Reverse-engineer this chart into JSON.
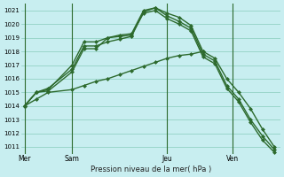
{
  "bg_color": "#c8eef0",
  "grid_color": "#88ccbb",
  "line_color": "#2d6a2d",
  "marker": "D",
  "markersize": 2.0,
  "linewidth": 1.0,
  "xlabel": "Pression niveau de la mer( hPa )",
  "ylim": [
    1010.5,
    1021.5
  ],
  "yticks": [
    1011,
    1012,
    1013,
    1014,
    1015,
    1016,
    1017,
    1018,
    1019,
    1020,
    1021
  ],
  "day_labels": [
    "Mer",
    "Sam",
    "Jeu",
    "Ven"
  ],
  "day_positions": [
    0.0,
    4.0,
    12.0,
    17.5
  ],
  "xlim": [
    -0.3,
    21.5
  ],
  "series": [
    {
      "x": [
        0,
        1,
        2,
        4,
        5,
        6,
        7,
        8,
        9,
        10,
        11,
        12,
        13,
        14,
        15
      ],
      "y": [
        1014.0,
        1014.5,
        1015.0,
        1015.2,
        1015.5,
        1015.8,
        1016.0,
        1016.3,
        1016.6,
        1016.9,
        1017.2,
        1017.5,
        1017.7,
        1017.8,
        1018.0
      ]
    },
    {
      "x": [
        0,
        1,
        2,
        4,
        5,
        6,
        7,
        8,
        9,
        10,
        11,
        12,
        13,
        14,
        15,
        16,
        17,
        18,
        19,
        20,
        21
      ],
      "y": [
        1014.0,
        1015.0,
        1015.2,
        1017.0,
        1018.7,
        1018.7,
        1019.0,
        1019.2,
        1019.3,
        1021.0,
        1021.2,
        1020.8,
        1020.5,
        1019.9,
        1018.0,
        1017.5,
        1016.0,
        1015.0,
        1013.8,
        1012.3,
        1011.0
      ]
    },
    {
      "x": [
        0,
        1,
        2,
        4,
        5,
        6,
        7,
        8,
        9,
        10,
        11,
        12,
        13,
        14,
        15,
        16,
        17,
        18,
        19,
        20,
        21
      ],
      "y": [
        1014.0,
        1015.0,
        1015.3,
        1016.7,
        1018.4,
        1018.4,
        1018.7,
        1018.9,
        1019.1,
        1020.9,
        1021.2,
        1020.6,
        1020.2,
        1019.7,
        1017.8,
        1017.3,
        1015.5,
        1014.5,
        1013.0,
        1011.8,
        1010.8
      ]
    },
    {
      "x": [
        0,
        1,
        2,
        4,
        5,
        6,
        7,
        8,
        9,
        10,
        11,
        12,
        13,
        14,
        15,
        16,
        17,
        18,
        19,
        20,
        21
      ],
      "y": [
        1014.0,
        1015.0,
        1015.1,
        1016.5,
        1018.2,
        1018.2,
        1019.0,
        1019.1,
        1019.2,
        1020.8,
        1021.0,
        1020.4,
        1020.0,
        1019.5,
        1017.6,
        1017.1,
        1015.3,
        1014.3,
        1012.8,
        1011.5,
        1010.6
      ]
    }
  ]
}
